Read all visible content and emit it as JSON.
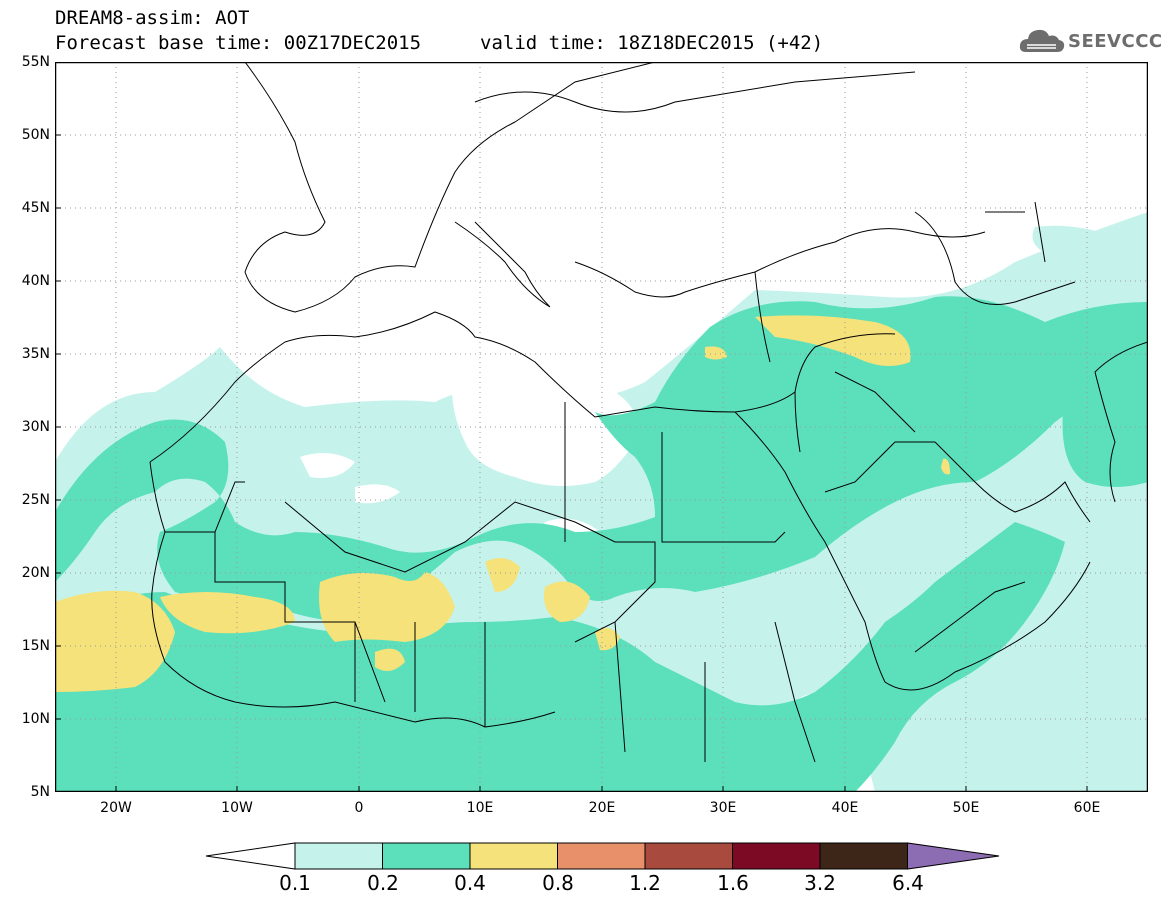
{
  "header": {
    "title_line1": "DREAM8-assim: AOT",
    "title_line2": "Forecast base time: 00Z17DEC2015",
    "valid_time": "valid time: 18Z18DEC2015 (+42)"
  },
  "logo": {
    "text": "SEEVCCC",
    "icon": "cloud-icon"
  },
  "map": {
    "projection": "cylindrical equidistant",
    "lon_range": [
      -25,
      65
    ],
    "lat_range": [
      5,
      55
    ],
    "lat_ticks": [
      "55N",
      "50N",
      "45N",
      "40N",
      "35N",
      "30N",
      "25N",
      "20N",
      "15N",
      "10N",
      "5N"
    ],
    "lon_ticks": [
      "20W",
      "10W",
      "0",
      "10E",
      "20E",
      "30E",
      "40E",
      "50E",
      "60E"
    ],
    "gridlines": "dotted"
  },
  "colorbar": {
    "labels": [
      "0.1",
      "0.2",
      "0.4",
      "0.8",
      "1.2",
      "1.6",
      "3.2",
      "6.4"
    ],
    "colors": [
      "#ffffff",
      "#c5f3ec",
      "#5ce0bb",
      "#f5e27a",
      "#e8906a",
      "#a84a3d",
      "#7c0a24",
      "#3d2618",
      "#8c6db3"
    ]
  }
}
